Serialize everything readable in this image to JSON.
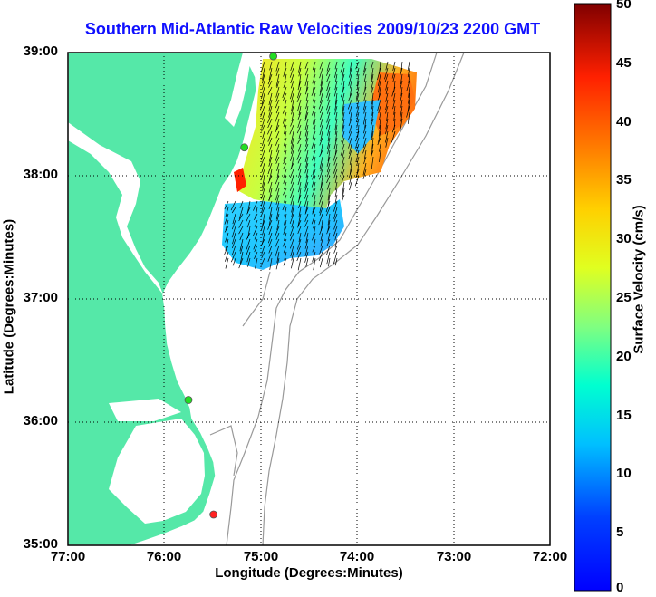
{
  "title": "Southern Mid-Atlantic Raw Velocities 2009/10/23 2200 GMT",
  "x_axis": {
    "label": "Longitude (Degrees:Minutes)",
    "ticks": [
      "77:00",
      "76:00",
      "75:00",
      "74:00",
      "73:00",
      "72:00"
    ]
  },
  "y_axis": {
    "label": "Latitude (Degrees:Minutes)",
    "ticks": [
      "39:00",
      "38:00",
      "37:00",
      "36:00",
      "35:00"
    ]
  },
  "colorbar": {
    "label": "Surface Velocity (cm/s)",
    "ticks": [
      "50",
      "45",
      "40",
      "35",
      "30",
      "25",
      "20",
      "15",
      "10",
      "5",
      "0"
    ],
    "range": [
      0,
      50
    ],
    "colormap": "jet"
  },
  "map": {
    "extent_lon": [
      -77,
      -72
    ],
    "extent_lat": [
      35,
      39
    ],
    "land_color": "#55e8a8",
    "contour_color": "#999999",
    "grid": "dotted"
  },
  "stations": [
    {
      "lon": -74.87,
      "lat": 38.97,
      "color": "#22dd22"
    },
    {
      "lon": -75.17,
      "lat": 38.23,
      "color": "#22dd22"
    },
    {
      "lon": -75.75,
      "lat": 36.18,
      "color": "#22dd22"
    },
    {
      "lon": -75.49,
      "lat": 35.25,
      "color": "#ff2222"
    }
  ]
}
